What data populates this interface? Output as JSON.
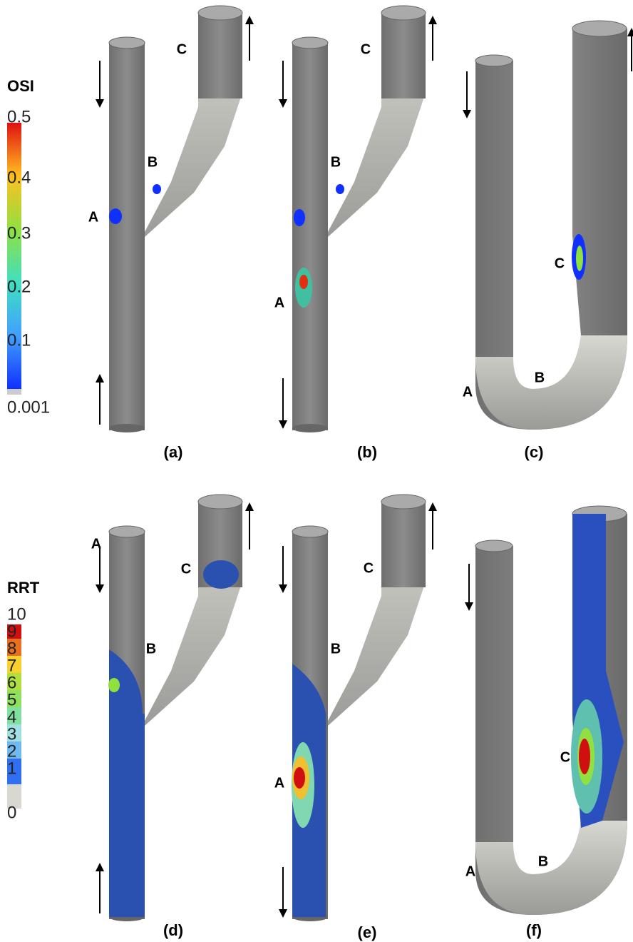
{
  "colorbars": [
    {
      "title": "OSI",
      "labels": [
        "0.5",
        "0.4",
        "0.3",
        "0.2",
        "0.1",
        "0.001"
      ]
    },
    {
      "title": "RRT",
      "labels": [
        "10",
        "9",
        "8",
        "7",
        "6",
        "5",
        "4",
        "3",
        "2",
        "1",
        "0"
      ]
    }
  ],
  "panels": [
    {
      "caption": "(a)",
      "points": [
        "A",
        "B",
        "C"
      ]
    },
    {
      "caption": "(b)",
      "points": [
        "A",
        "B",
        "C"
      ]
    },
    {
      "caption": "(c)",
      "points": [
        "A",
        "B",
        "C"
      ]
    },
    {
      "caption": "(d)",
      "points": [
        "A",
        "B",
        "C"
      ]
    },
    {
      "caption": "(e)",
      "points": [
        "A",
        "B",
        "C"
      ]
    },
    {
      "caption": "(f)",
      "points": [
        "A",
        "B",
        "C"
      ]
    }
  ]
}
